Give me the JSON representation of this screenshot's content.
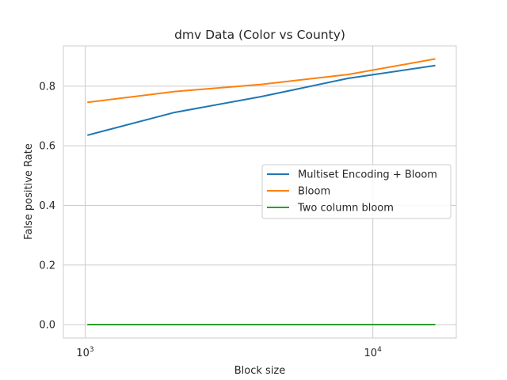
{
  "chart_data": {
    "type": "line",
    "title": "dmv Data (Color vs County)",
    "xlabel": "Block size",
    "ylabel": "False positive Rate",
    "xscale": "log",
    "xlim": [
      840,
      19500
    ],
    "ylim": [
      -0.045,
      0.935
    ],
    "grid": true,
    "legend_position": "center-right",
    "x": [
      1024,
      2048,
      4096,
      8192,
      16384
    ],
    "x_ticks": [
      {
        "value": 1000,
        "base": "10",
        "exp": "3"
      },
      {
        "value": 10000,
        "base": "10",
        "exp": "4"
      }
    ],
    "y_ticks": [
      {
        "value": 0.0,
        "label": "0.0"
      },
      {
        "value": 0.2,
        "label": "0.2"
      },
      {
        "value": 0.4,
        "label": "0.4"
      },
      {
        "value": 0.6,
        "label": "0.6"
      },
      {
        "value": 0.8,
        "label": "0.8"
      }
    ],
    "series": [
      {
        "name": "Multiset Encoding + Bloom",
        "color": "#1f77b4",
        "values": [
          0.636,
          0.712,
          0.765,
          0.826,
          0.869
        ]
      },
      {
        "name": "Bloom",
        "color": "#ff7f0e",
        "values": [
          0.746,
          0.782,
          0.806,
          0.839,
          0.891
        ]
      },
      {
        "name": "Two column bloom",
        "color": "#2ca02c",
        "values": [
          0.0,
          0.0,
          0.0,
          0.0,
          0.0
        ]
      }
    ]
  }
}
